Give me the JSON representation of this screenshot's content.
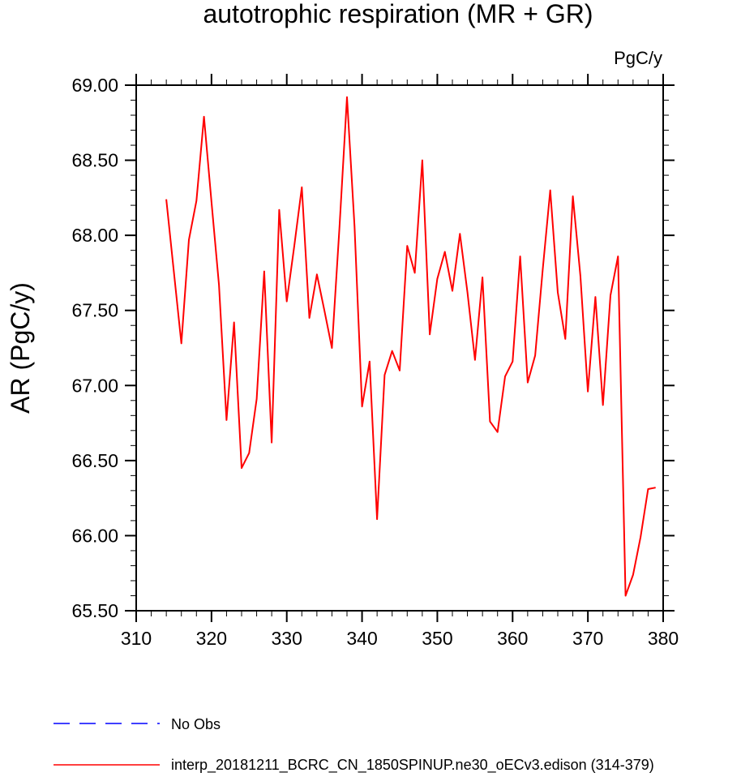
{
  "chart_data": {
    "type": "line",
    "title": "autotrophic respiration (MR + GR)",
    "units_label": "PgC/y",
    "xlabel": "",
    "ylabel": "AR  (PgC/y)",
    "xlim": [
      310,
      380
    ],
    "ylim": [
      65.5,
      69.0
    ],
    "xticks": [
      310,
      320,
      330,
      340,
      350,
      360,
      370,
      380
    ],
    "xtick_labels": [
      "310",
      "320",
      "330",
      "340",
      "350",
      "360",
      "370",
      "380"
    ],
    "yticks": [
      65.5,
      66.0,
      66.5,
      67.0,
      67.5,
      68.0,
      68.5,
      69.0
    ],
    "ytick_labels": [
      "65.50",
      "66.00",
      "66.50",
      "67.00",
      "67.50",
      "68.00",
      "68.50",
      "69.00"
    ],
    "grid": false,
    "legend_position": "bottom",
    "legend": [
      {
        "label": "No Obs",
        "color": "#0000ff",
        "dash": "dashed"
      },
      {
        "label": "interp_20181211_BCRC_CN_1850SPINUP.ne30_oECv3.edison (314-379)",
        "color": "#ff0000",
        "dash": "solid"
      }
    ],
    "series": [
      {
        "name": "interp_20181211_BCRC_CN_1850SPINUP.ne30_oECv3.edison (314-379)",
        "color": "#ff0000",
        "x": [
          314,
          315,
          316,
          317,
          318,
          319,
          320,
          321,
          322,
          323,
          324,
          325,
          326,
          327,
          328,
          329,
          330,
          331,
          332,
          333,
          334,
          335,
          336,
          337,
          338,
          339,
          340,
          341,
          342,
          343,
          344,
          345,
          346,
          347,
          348,
          349,
          350,
          351,
          352,
          353,
          354,
          355,
          356,
          357,
          358,
          359,
          360,
          361,
          362,
          363,
          364,
          365,
          366,
          367,
          368,
          369,
          370,
          371,
          372,
          373,
          374,
          375,
          376,
          377,
          378,
          379
        ],
        "y": [
          68.24,
          67.76,
          67.28,
          67.97,
          68.23,
          68.79,
          68.22,
          67.67,
          66.77,
          67.42,
          66.45,
          66.55,
          66.91,
          67.76,
          66.62,
          68.17,
          67.56,
          67.93,
          68.32,
          67.45,
          67.74,
          67.5,
          67.25,
          68.05,
          68.92,
          68.06,
          66.86,
          67.16,
          66.11,
          67.07,
          67.23,
          67.1,
          67.93,
          67.75,
          68.5,
          67.34,
          67.71,
          67.89,
          67.63,
          68.01,
          67.62,
          67.17,
          67.72,
          66.76,
          66.69,
          67.06,
          67.16,
          67.86,
          67.02,
          67.2,
          67.77,
          68.3,
          67.62,
          67.31,
          68.26,
          67.73,
          66.96,
          67.59,
          66.87,
          67.6,
          67.86,
          65.6,
          65.74,
          65.99,
          66.31,
          66.32
        ]
      }
    ]
  }
}
